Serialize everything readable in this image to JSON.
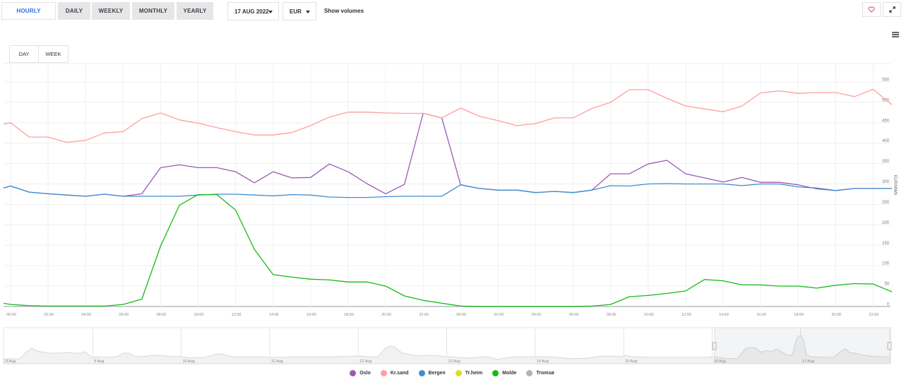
{
  "toolbar": {
    "periods": [
      {
        "label": "HOURLY",
        "active": true
      },
      {
        "label": "DAILY",
        "active": false
      },
      {
        "label": "WEEKLY",
        "active": false
      },
      {
        "label": "MONTHLY",
        "active": false
      },
      {
        "label": "YEARLY",
        "active": false
      }
    ],
    "date_select": "17 AUG 2022",
    "currency_select": "EUR",
    "show_volumes": "Show volumes",
    "favorite_icon": "heart-icon",
    "fullscreen_icon": "expand-icon"
  },
  "range": {
    "day_label": "DAY",
    "week_label": "WEEK"
  },
  "menu_icon": "hamburger-menu-icon",
  "colors": {
    "Oslo": "#9b59b6",
    "Kr.sand": "#ff9f9f",
    "Bergen": "#3e8ecf",
    "Tr.heim": "#e0dc20",
    "Molde": "#16b916",
    "Tromsø": "#b3b3b3"
  },
  "chart_data": {
    "type": "line",
    "title": "",
    "xlabel": "",
    "ylabel": "EUR/MWh",
    "ylim": [
      0,
      550
    ],
    "yticks": [
      0,
      50,
      100,
      150,
      200,
      250,
      300,
      350,
      400,
      450,
      500,
      550
    ],
    "grid": true,
    "legend_position": "bottom",
    "x_tick_labels": [
      "00:00",
      "02:00",
      "04:00",
      "06:00",
      "08:00",
      "10:00",
      "12:00",
      "14:00",
      "16:00",
      "18:00",
      "20:00",
      "22:00",
      "00:00",
      "02:00",
      "04:00",
      "06:00",
      "08:00",
      "10:00",
      "12:00",
      "14:00",
      "16:00",
      "18:00",
      "20:00",
      "22:00"
    ],
    "x": [
      "16 Aug 00:00",
      "01:00",
      "02:00",
      "03:00",
      "04:00",
      "05:00",
      "06:00",
      "07:00",
      "08:00",
      "09:00",
      "10:00",
      "11:00",
      "12:00",
      "13:00",
      "14:00",
      "15:00",
      "16:00",
      "17:00",
      "18:00",
      "19:00",
      "20:00",
      "21:00",
      "22:00",
      "23:00",
      "17 Aug 00:00",
      "01:00",
      "02:00",
      "03:00",
      "04:00",
      "05:00",
      "06:00",
      "07:00",
      "08:00",
      "09:00",
      "10:00",
      "11:00",
      "12:00",
      "13:00",
      "14:00",
      "15:00",
      "16:00",
      "17:00",
      "18:00",
      "19:00",
      "20:00",
      "21:00",
      "22:00",
      "23:00"
    ],
    "series": [
      {
        "name": "Oslo",
        "values": [
          295,
          280,
          276,
          273,
          270,
          275,
          270,
          276,
          340,
          347,
          340,
          340,
          330,
          303,
          330,
          315,
          316,
          349,
          330,
          301,
          276,
          299,
          473,
          462,
          298,
          289,
          285,
          285,
          279,
          282,
          279,
          285,
          325,
          325,
          349,
          358,
          325,
          315,
          305,
          316,
          304,
          304,
          298,
          288,
          284,
          289,
          289,
          289
        ]
      },
      {
        "name": "Kr.sand",
        "values": [
          450,
          415,
          415,
          402,
          407,
          425,
          428,
          460,
          474,
          457,
          449,
          438,
          428,
          420,
          420,
          426,
          443,
          464,
          476,
          476,
          474,
          473,
          473,
          462,
          486,
          466,
          455,
          443,
          448,
          462,
          462,
          485,
          500,
          531,
          531,
          510,
          491,
          484,
          477,
          491,
          523,
          528,
          522,
          524,
          524,
          514,
          532,
          494
        ]
      },
      {
        "name": "Bergen",
        "values": [
          295,
          280,
          276,
          273,
          270,
          275,
          270,
          270,
          270,
          270,
          273,
          275,
          275,
          273,
          271,
          274,
          273,
          268,
          267,
          267,
          269,
          270,
          270,
          270,
          298,
          289,
          285,
          285,
          279,
          282,
          279,
          285,
          296,
          295,
          300,
          301,
          300,
          300,
          300,
          296,
          300,
          300,
          293,
          290,
          284,
          289,
          289,
          289
        ]
      },
      {
        "name": "Tr.heim",
        "values": []
      },
      {
        "name": "Molde",
        "values": [
          5,
          2,
          1,
          1,
          1,
          1,
          5,
          18,
          148,
          248,
          274,
          274,
          236,
          140,
          78,
          72,
          67,
          65,
          60,
          60,
          50,
          26,
          15,
          8,
          1,
          0,
          0,
          0,
          0,
          0,
          0,
          1,
          5,
          24,
          27,
          32,
          38,
          66,
          63,
          53,
          53,
          50,
          50,
          45,
          52,
          56,
          55,
          36
        ]
      },
      {
        "name": "Tromsø",
        "values": []
      }
    ],
    "lead_in": {
      "Kr.sand": 447,
      "Bergen": 290,
      "Oslo": 290,
      "Molde": 8
    }
  },
  "navigator": {
    "labels": [
      "8 Aug",
      "9 Aug",
      "10 Aug",
      "11 Aug",
      "12 Aug",
      "13 Aug",
      "14 Aug",
      "15 Aug",
      "16 Aug",
      "17 Aug"
    ]
  },
  "legend": [
    {
      "label": "Oslo"
    },
    {
      "label": "Kr.sand"
    },
    {
      "label": "Bergen"
    },
    {
      "label": "Tr.heim"
    },
    {
      "label": "Molde"
    },
    {
      "label": "Tromsø"
    }
  ]
}
